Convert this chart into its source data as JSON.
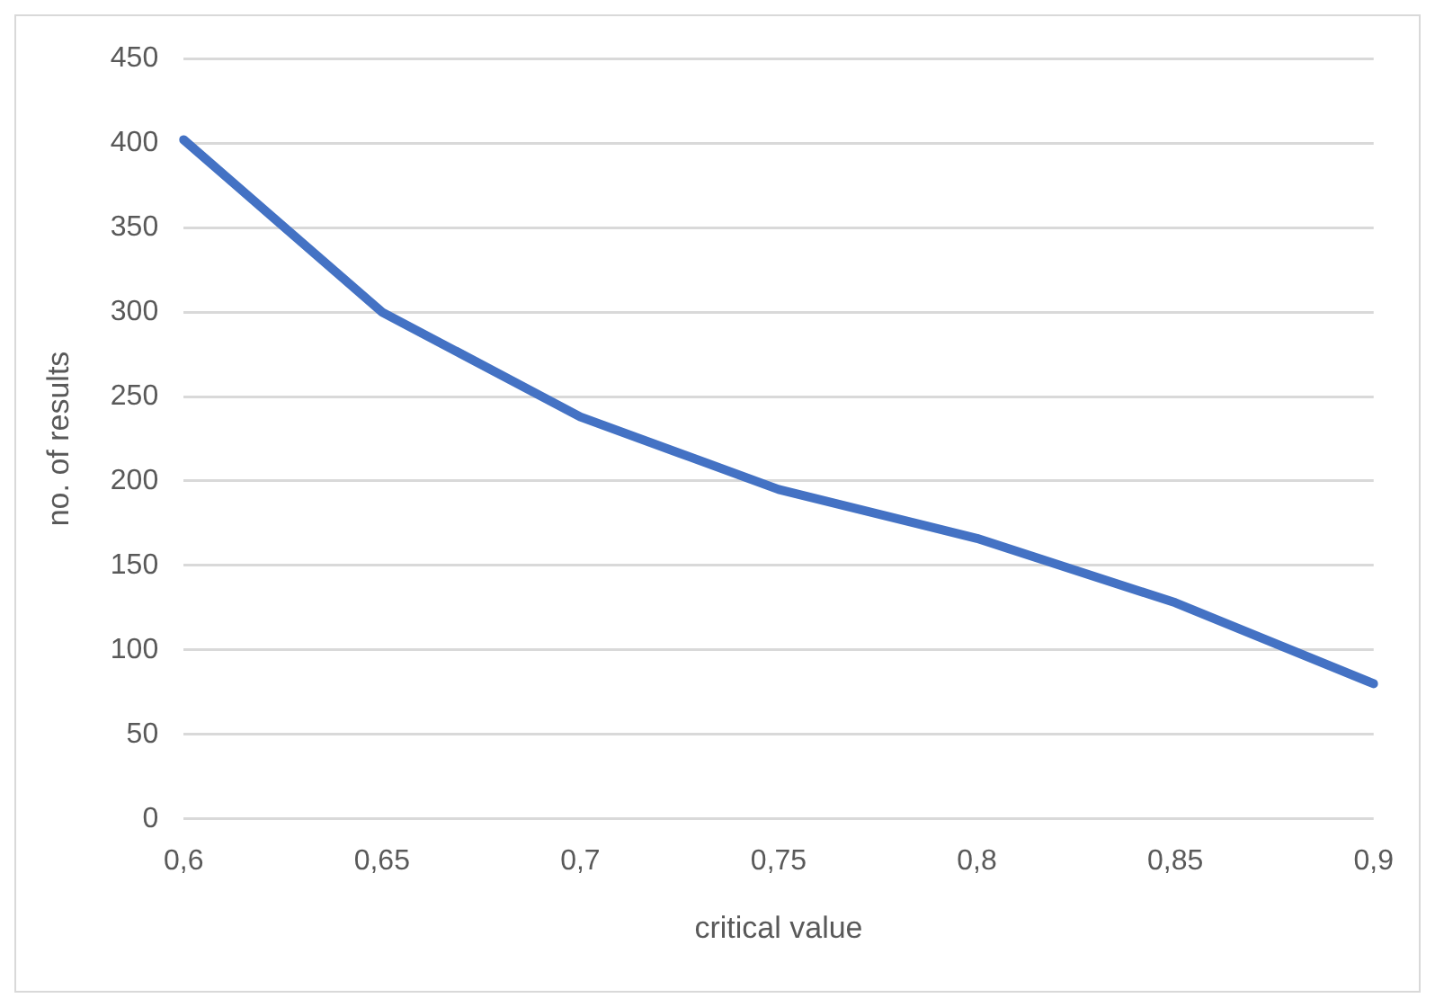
{
  "chart_data": {
    "type": "line",
    "xlabel": "critical value",
    "ylabel": "no. of results",
    "categories": [
      "0,6",
      "0,65",
      "0,7",
      "0,75",
      "0,8",
      "0,85",
      "0,9"
    ],
    "series": [
      {
        "color": "#4472c4",
        "values": [
          402,
          300,
          238,
          195,
          166,
          128,
          80
        ]
      }
    ],
    "ylim": [
      0,
      450
    ],
    "yticks": [
      0,
      50,
      100,
      150,
      200,
      250,
      300,
      350,
      400,
      450
    ],
    "grid": "y",
    "legend": false,
    "marker": "none",
    "line_style": "solid"
  }
}
